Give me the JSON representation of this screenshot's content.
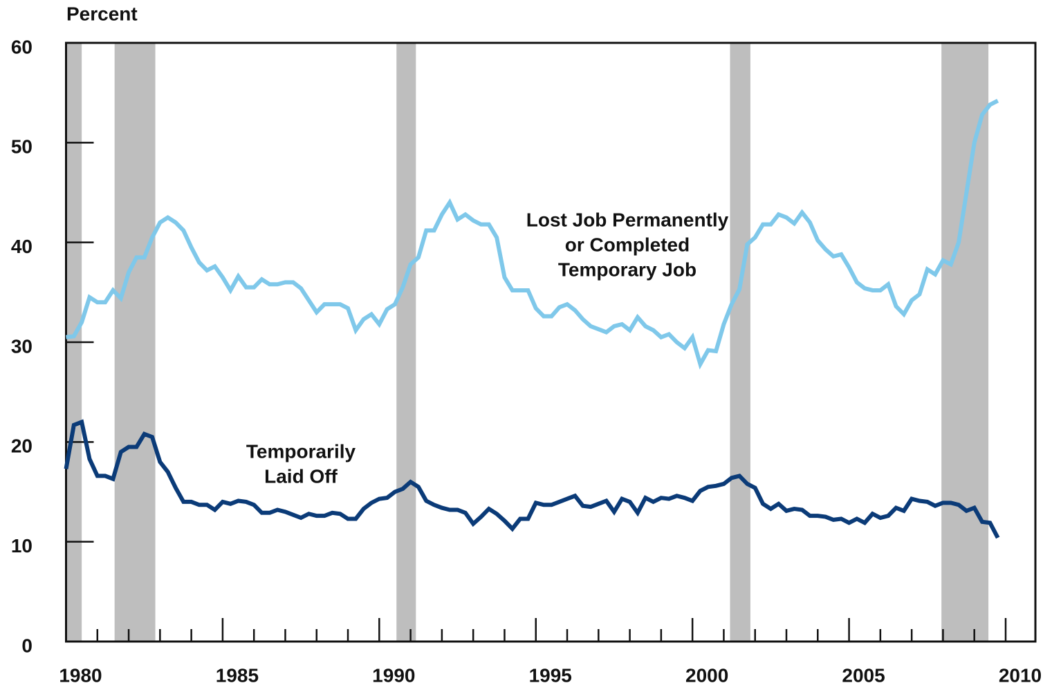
{
  "chart_data": {
    "type": "line",
    "ylabel": "Percent",
    "xlim": [
      1980,
      2010.95
    ],
    "ylim": [
      0,
      60
    ],
    "xticks": [
      1980,
      1985,
      1990,
      1995,
      2000,
      2005,
      2010
    ],
    "xticks_minor": [
      1981,
      1982,
      1983,
      1984,
      1986,
      1987,
      1988,
      1989,
      1991,
      1992,
      1993,
      1994,
      1996,
      1997,
      1998,
      1999,
      2001,
      2002,
      2003,
      2004,
      2006,
      2007,
      2008,
      2009
    ],
    "yticks": [
      0,
      10,
      20,
      30,
      40,
      50,
      60
    ],
    "recessions": [
      [
        1980,
        1980.5
      ],
      [
        1981.55,
        1982.85
      ],
      [
        1990.55,
        1991.17
      ],
      [
        2001.2,
        2001.85
      ],
      [
        2007.95,
        2009.45
      ]
    ],
    "recession_color": "#bebebe",
    "x": [
      1980,
      1980.25,
      1980.5,
      1980.75,
      1981,
      1981.25,
      1981.5,
      1981.75,
      1982,
      1982.25,
      1982.5,
      1982.75,
      1983,
      1983.25,
      1983.5,
      1983.75,
      1984,
      1984.25,
      1984.5,
      1984.75,
      1985,
      1985.25,
      1985.5,
      1985.75,
      1986,
      1986.25,
      1986.5,
      1986.75,
      1987,
      1987.25,
      1987.5,
      1987.75,
      1988,
      1988.25,
      1988.5,
      1988.75,
      1989,
      1989.25,
      1989.5,
      1989.75,
      1990,
      1990.25,
      1990.5,
      1990.75,
      1991,
      1991.25,
      1991.5,
      1991.75,
      1992,
      1992.25,
      1992.5,
      1992.75,
      1993,
      1993.25,
      1993.5,
      1993.75,
      1994,
      1994.25,
      1994.5,
      1994.75,
      1995,
      1995.25,
      1995.5,
      1995.75,
      1996,
      1996.25,
      1996.5,
      1996.75,
      1997,
      1997.25,
      1997.5,
      1997.75,
      1998,
      1998.25,
      1998.5,
      1998.75,
      1999,
      1999.25,
      1999.5,
      1999.75,
      2000,
      2000.25,
      2000.5,
      2000.75,
      2001,
      2001.25,
      2001.5,
      2001.75,
      2002,
      2002.25,
      2002.5,
      2002.75,
      2003,
      2003.25,
      2003.5,
      2003.75,
      2004,
      2004.25,
      2004.5,
      2004.75,
      2005,
      2005.25,
      2005.5,
      2005.75,
      2006,
      2006.25,
      2006.5,
      2006.75,
      2007,
      2007.25,
      2007.5,
      2007.75,
      2008,
      2008.25,
      2008.5,
      2008.75,
      2009,
      2009.25,
      2009.5,
      2009.75
    ],
    "series": [
      {
        "color": "#7fc8ea",
        "label_lines": [
          "Lost Job Permanently",
          "or Completed",
          "Temporary Job"
        ],
        "values": [
          30.5,
          30.6,
          32,
          34.5,
          34,
          34,
          35.2,
          34.4,
          37,
          38.5,
          38.5,
          40.5,
          42,
          42.5,
          42,
          41.2,
          39.5,
          38,
          37.2,
          37.6,
          36.5,
          35.2,
          36.6,
          35.5,
          35.5,
          36.3,
          35.8,
          35.8,
          36,
          36,
          35.4,
          34.2,
          33,
          33.8,
          33.8,
          33.8,
          33.4,
          31.2,
          32.3,
          32.8,
          31.8,
          33.3,
          33.8,
          35.5,
          37.8,
          38.5,
          41.2,
          41.2,
          42.8,
          44,
          42.3,
          42.8,
          42.2,
          41.8,
          41.8,
          40.5,
          36.5,
          35.2,
          35.2,
          35.2,
          33.4,
          32.6,
          32.6,
          33.5,
          33.8,
          33.2,
          32.3,
          31.6,
          31.3,
          31,
          31.6,
          31.8,
          31.2,
          32.5,
          31.6,
          31.2,
          30.5,
          30.8,
          30,
          29.4,
          30.5,
          27.8,
          29.2,
          29.1,
          31.8,
          33.8,
          35.3,
          39.8,
          40.5,
          41.8,
          41.8,
          42.8,
          42.5,
          41.9,
          43,
          42,
          40.2,
          39.3,
          38.6,
          38.8,
          37.5,
          36,
          35.4,
          35.2,
          35.2,
          35.8,
          33.6,
          32.8,
          34.2,
          34.8,
          37.3,
          36.8,
          38.2,
          37.8,
          40,
          45,
          50,
          52.8,
          53.8,
          54.2
        ]
      },
      {
        "color": "#0b3b78",
        "label_lines": [
          "Temporarily",
          "Laid Off"
        ],
        "values": [
          17.3,
          21.7,
          22,
          18.3,
          16.6,
          16.6,
          16.3,
          19,
          19.5,
          19.5,
          20.8,
          20.5,
          18,
          17,
          15.4,
          14,
          14,
          13.7,
          13.7,
          13.2,
          14,
          13.8,
          14.1,
          14,
          13.7,
          12.9,
          12.9,
          13.2,
          13,
          12.7,
          12.4,
          12.8,
          12.6,
          12.6,
          12.9,
          12.8,
          12.3,
          12.3,
          13.3,
          13.9,
          14.3,
          14.4,
          15,
          15.3,
          16,
          15.5,
          14.1,
          13.7,
          13.4,
          13.2,
          13.2,
          12.9,
          11.8,
          12.5,
          13.3,
          12.8,
          12.1,
          11.3,
          12.3,
          12.3,
          13.9,
          13.7,
          13.7,
          14,
          14.3,
          14.6,
          13.6,
          13.5,
          13.8,
          14.1,
          13,
          14.3,
          14,
          12.9,
          14.4,
          14,
          14.4,
          14.3,
          14.6,
          14.4,
          14.1,
          15.1,
          15.5,
          15.6,
          15.8,
          16.4,
          16.6,
          15.8,
          15.4,
          13.8,
          13.3,
          13.8,
          13.1,
          13.3,
          13.2,
          12.6,
          12.6,
          12.5,
          12.2,
          12.3,
          11.9,
          12.3,
          11.9,
          12.8,
          12.4,
          12.6,
          13.4,
          13.1,
          14.3,
          14.1,
          14,
          13.6,
          13.9,
          13.9,
          13.7,
          13.1,
          13.4,
          12,
          11.9,
          10.4
        ]
      }
    ]
  }
}
